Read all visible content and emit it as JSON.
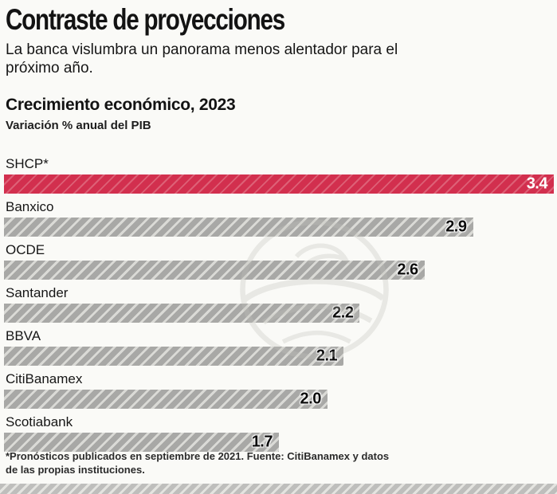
{
  "header": {
    "title": "Contraste de proyecciones",
    "subtitle": "La banca vislumbra un panorama menos alentador para el próximo año."
  },
  "chart": {
    "title": "Crecimiento económico, 2023",
    "unit": "Variación % anual del PIB"
  },
  "chart_data": {
    "type": "bar",
    "orientation": "horizontal",
    "title": "Crecimiento económico, 2023",
    "xlabel": "Variación % anual del PIB",
    "categories": [
      "SHCP*",
      "Banxico",
      "OCDE",
      "Santander",
      "BBVA",
      "CitiBanamex",
      "Scotiabank"
    ],
    "values": [
      3.4,
      2.9,
      2.6,
      2.2,
      2.1,
      2.0,
      1.7
    ],
    "value_labels": [
      "3.4",
      "2.9",
      "2.6",
      "2.2",
      "2.1",
      "2.0",
      "1.7"
    ],
    "xlim": [
      0,
      3.4
    ],
    "grid": false,
    "legend": false,
    "highlight_index": 0,
    "highlight_color": "#d22f4e",
    "bar_color": "#a8a8a6",
    "pattern": "diagonal-hatch"
  },
  "footer": {
    "note": "*Pronósticos publicados en septiembre de 2021. Fuente: CitiBanamex y datos de las propias instituciones."
  },
  "colors": {
    "accent": "#d22f4e",
    "bar_gray": "#a8a8a6",
    "background": "#fafaf7",
    "text": "#141414"
  }
}
